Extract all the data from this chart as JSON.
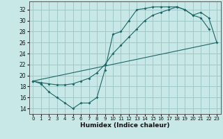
{
  "title": "",
  "xlabel": "Humidex (Indice chaleur)",
  "bg_color": "#c8e8e8",
  "grid_color": "#a0c8c8",
  "line_color": "#1a6666",
  "xlim": [
    -0.5,
    23.5
  ],
  "ylim": [
    13,
    33.5
  ],
  "xticks": [
    0,
    1,
    2,
    3,
    4,
    5,
    6,
    7,
    8,
    9,
    10,
    11,
    12,
    13,
    14,
    15,
    16,
    17,
    18,
    19,
    20,
    21,
    22,
    23
  ],
  "yticks": [
    14,
    16,
    18,
    20,
    22,
    24,
    26,
    28,
    30,
    32
  ],
  "curve1_x": [
    0,
    1,
    2,
    3,
    4,
    5,
    6,
    7,
    8,
    9,
    10,
    11,
    12,
    13,
    14,
    15,
    16,
    17,
    18,
    19,
    20,
    21,
    22
  ],
  "curve1_y": [
    19.0,
    18.5,
    17.0,
    16.0,
    15.0,
    14.0,
    15.0,
    15.0,
    16.0,
    21.0,
    27.5,
    28.0,
    30.0,
    32.0,
    32.2,
    32.5,
    32.5,
    32.5,
    32.5,
    32.0,
    31.0,
    30.5,
    28.5
  ],
  "curve2_x": [
    0,
    1,
    2,
    3,
    4,
    5,
    6,
    7,
    8,
    9,
    10,
    11,
    12,
    13,
    14,
    15,
    16,
    17,
    18,
    19,
    20,
    21,
    22,
    23
  ],
  "curve2_y": [
    19.0,
    18.7,
    18.5,
    18.3,
    18.3,
    18.5,
    19.0,
    19.5,
    20.5,
    22.0,
    24.0,
    25.5,
    27.0,
    28.5,
    30.0,
    31.0,
    31.5,
    32.0,
    32.5,
    32.0,
    31.0,
    31.5,
    30.5,
    26.0
  ],
  "line_x": [
    0,
    23
  ],
  "line_y": [
    19.0,
    26.0
  ]
}
